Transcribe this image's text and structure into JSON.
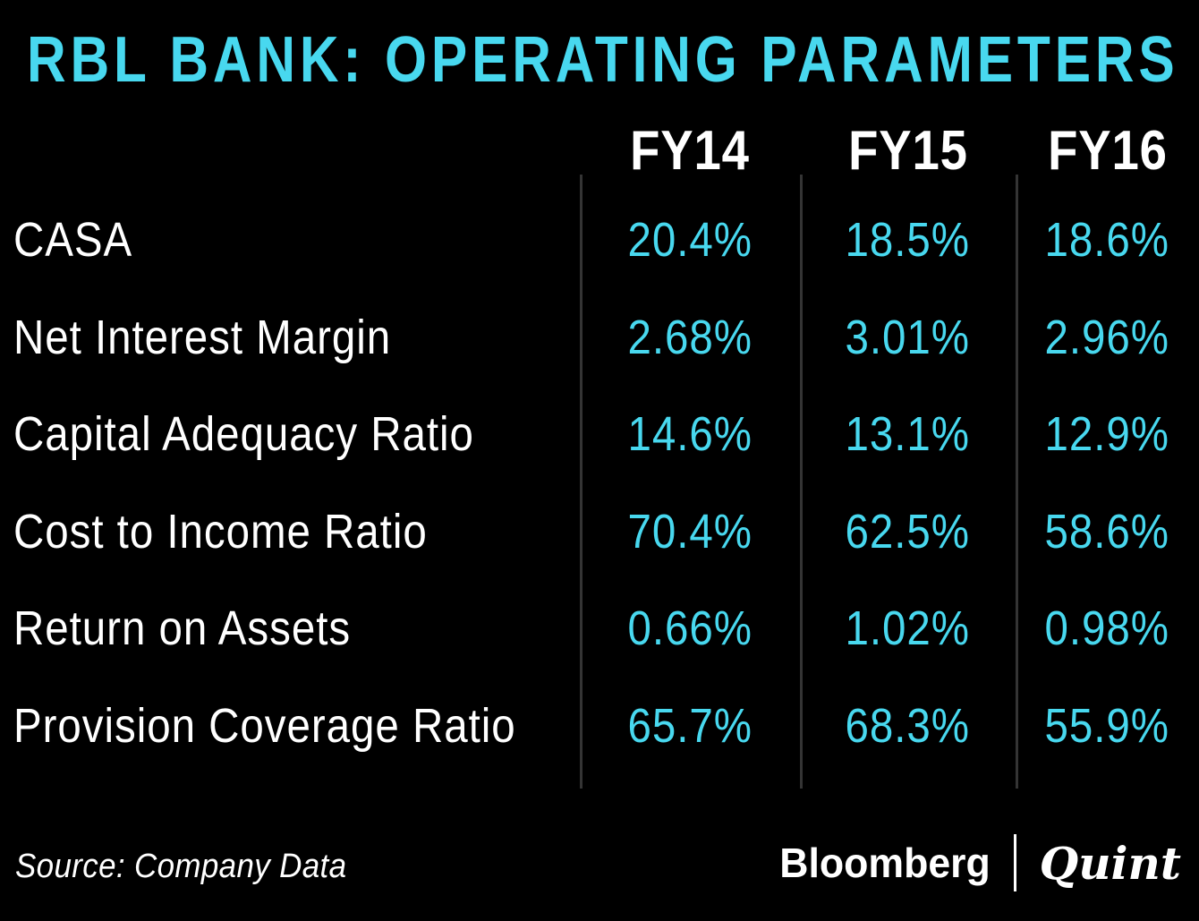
{
  "title": "RBL BANK: OPERATING PARAMETERS",
  "colors": {
    "background": "#000000",
    "accent_cyan": "#48D8EF",
    "text_white": "#FFFFFF",
    "divider_gray": "#343434"
  },
  "table": {
    "columns": [
      "FY14",
      "FY15",
      "FY16"
    ],
    "rows": [
      {
        "label": "CASA",
        "values": [
          "20.4%",
          "18.5%",
          "18.6%"
        ]
      },
      {
        "label": "Net Interest Margin",
        "values": [
          "2.68%",
          "3.01%",
          "2.96%"
        ]
      },
      {
        "label": "Capital Adequacy Ratio",
        "values": [
          "14.6%",
          "13.1%",
          "12.9%"
        ]
      },
      {
        "label": "Cost to Income Ratio",
        "values": [
          "70.4%",
          "62.5%",
          "58.6%"
        ]
      },
      {
        "label": "Return on Assets",
        "values": [
          "0.66%",
          "1.02%",
          "0.98%"
        ]
      },
      {
        "label": "Provision Coverage Ratio",
        "values": [
          "65.7%",
          "68.3%",
          "55.9%"
        ]
      }
    ]
  },
  "footer": {
    "source": "Source: Company Data",
    "brand_left": "Bloomberg",
    "brand_right": "Quint"
  },
  "chart_data": {
    "type": "table",
    "title": "RBL BANK: OPERATING PARAMETERS",
    "columns": [
      "FY14",
      "FY15",
      "FY16"
    ],
    "unit": "%",
    "rows": [
      {
        "metric": "CASA",
        "FY14": 20.4,
        "FY15": 18.5,
        "FY16": 18.6
      },
      {
        "metric": "Net Interest Margin",
        "FY14": 2.68,
        "FY15": 3.01,
        "FY16": 2.96
      },
      {
        "metric": "Capital Adequacy Ratio",
        "FY14": 14.6,
        "FY15": 13.1,
        "FY16": 12.9
      },
      {
        "metric": "Cost to Income Ratio",
        "FY14": 70.4,
        "FY15": 62.5,
        "FY16": 58.6
      },
      {
        "metric": "Return on Assets",
        "FY14": 0.66,
        "FY15": 1.02,
        "FY16": 0.98
      },
      {
        "metric": "Provision Coverage Ratio",
        "FY14": 65.7,
        "FY15": 68.3,
        "FY16": 55.9
      }
    ],
    "source": "Source: Company Data",
    "legend_position": "none",
    "grid": "vertical-dividers-only"
  }
}
